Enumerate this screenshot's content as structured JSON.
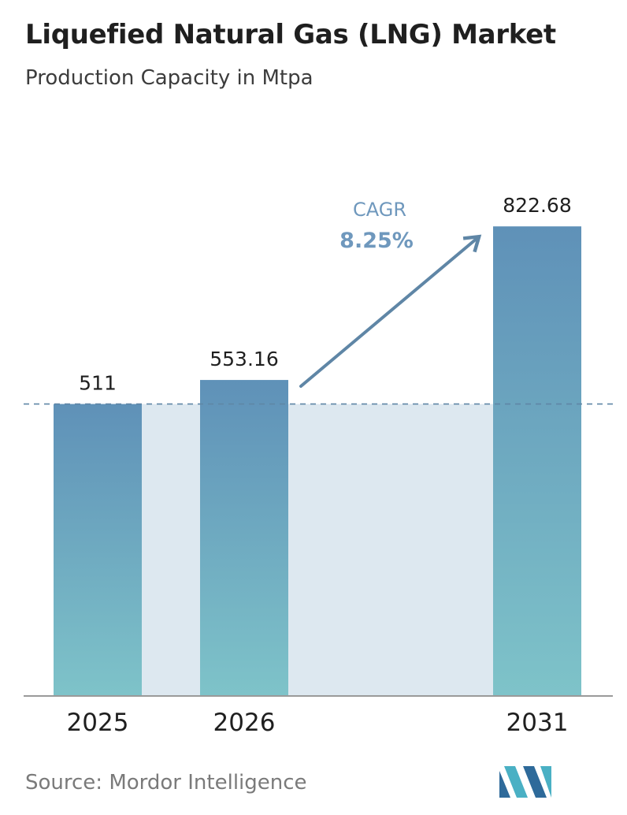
{
  "chart_data": {
    "type": "bar",
    "title": "Liquefied Natural Gas (LNG) Market",
    "subtitle": "Production Capacity in Mtpa",
    "categories": [
      "2025",
      "2026",
      "2031"
    ],
    "values": [
      511,
      553.16,
      822.68
    ],
    "value_labels": [
      "511",
      "553.16",
      "822.68"
    ],
    "ylim": [
      0,
      870
    ],
    "baseline_value": 511,
    "annotation": {
      "label": "CAGR",
      "value": "8.25%"
    },
    "colors": {
      "bar_top": "#5f91b8",
      "bar_bottom": "#7ec3c9",
      "band": "#dde8f0",
      "dashed_line": "#5f86a6",
      "arrow": "#5f86a6",
      "axis": "#9a9a9a"
    },
    "legend": "none",
    "grid": false
  },
  "footer": {
    "source": "Source: Mordor Intelligence",
    "logo_icon": "mordor-intelligence-logo-icon"
  }
}
